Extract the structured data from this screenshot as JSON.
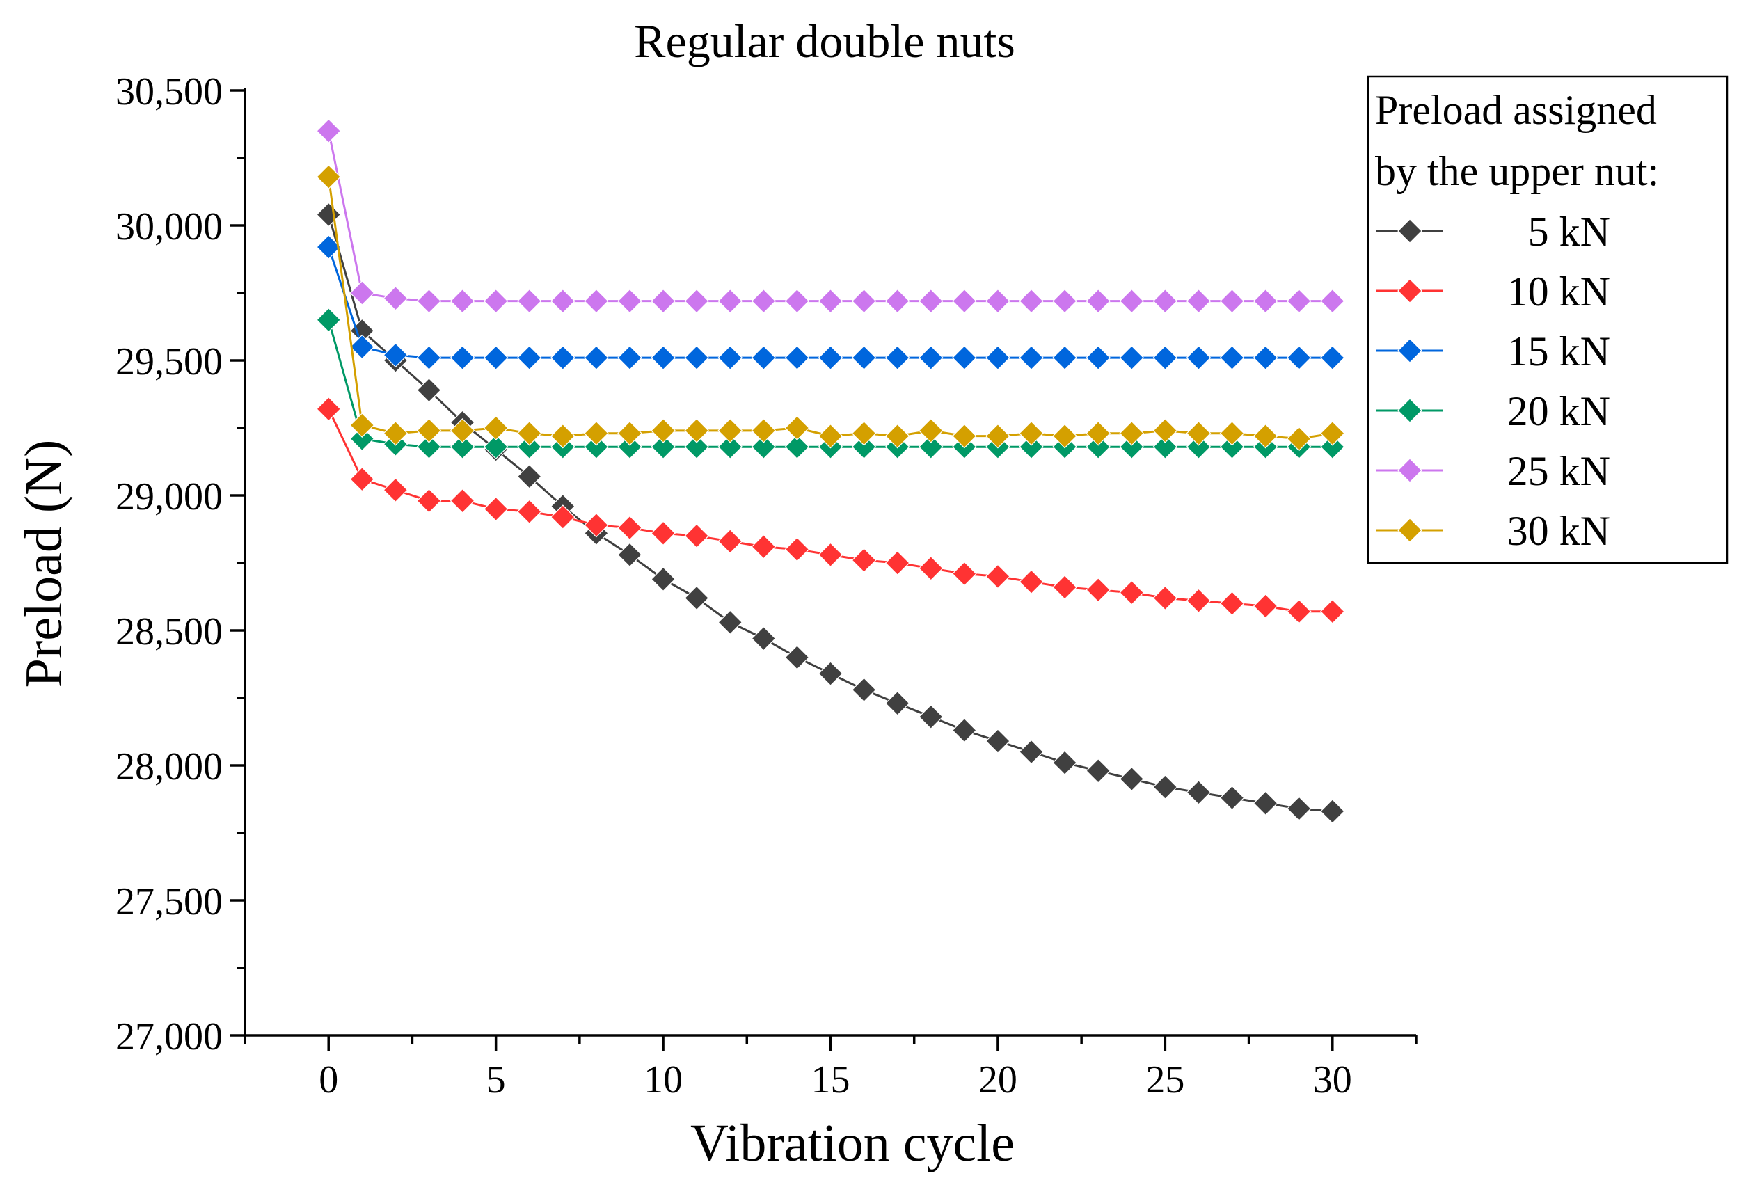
{
  "chart_data": {
    "type": "line",
    "title": "Regular double nuts",
    "xlabel": "Vibration cycle",
    "ylabel": "Preload (N)",
    "xlim": [
      -2.5,
      32.5
    ],
    "ylim": [
      27000,
      30500
    ],
    "x_ticks": [
      0,
      5,
      10,
      15,
      20,
      25,
      30
    ],
    "x_tick_labels": [
      "0",
      "5",
      "10",
      "15",
      "20",
      "25",
      "30"
    ],
    "y_ticks": [
      27000,
      27500,
      28000,
      28500,
      29000,
      29500,
      30000,
      30500
    ],
    "y_tick_labels": [
      "27,000",
      "27,500",
      "28,000",
      "28,500",
      "29,000",
      "29,500",
      "30,000",
      "30,500"
    ],
    "grid": false,
    "marker": "diamond",
    "legend": {
      "position": "top-right",
      "title_lines": [
        "Preload assigned",
        "by the upper nut:"
      ]
    },
    "x": [
      0,
      1,
      2,
      3,
      4,
      5,
      6,
      7,
      8,
      9,
      10,
      11,
      12,
      13,
      14,
      15,
      16,
      17,
      18,
      19,
      20,
      21,
      22,
      23,
      24,
      25,
      26,
      27,
      28,
      29,
      30
    ],
    "series": [
      {
        "name": "5 kN",
        "color": "#404040",
        "values": [
          30040,
          29610,
          29500,
          29390,
          29270,
          29170,
          29070,
          28960,
          28860,
          28780,
          28690,
          28620,
          28530,
          28470,
          28400,
          28340,
          28280,
          28230,
          28180,
          28130,
          28090,
          28050,
          28010,
          27980,
          27950,
          27920,
          27900,
          27880,
          27860,
          27840,
          27830
        ]
      },
      {
        "name": "10 kN",
        "color": "#ff3333",
        "values": [
          29320,
          29060,
          29020,
          28980,
          28980,
          28950,
          28940,
          28920,
          28890,
          28880,
          28860,
          28850,
          28830,
          28810,
          28800,
          28780,
          28760,
          28750,
          28730,
          28710,
          28700,
          28680,
          28660,
          28650,
          28640,
          28620,
          28610,
          28600,
          28590,
          28570,
          28570
        ]
      },
      {
        "name": "15 kN",
        "color": "#0066dd",
        "values": [
          29920,
          29550,
          29520,
          29510,
          29510,
          29510,
          29510,
          29510,
          29510,
          29510,
          29510,
          29510,
          29510,
          29510,
          29510,
          29510,
          29510,
          29510,
          29510,
          29510,
          29510,
          29510,
          29510,
          29510,
          29510,
          29510,
          29510,
          29510,
          29510,
          29510,
          29510
        ]
      },
      {
        "name": "20 kN",
        "color": "#009966",
        "values": [
          29650,
          29210,
          29190,
          29180,
          29180,
          29180,
          29180,
          29180,
          29180,
          29180,
          29180,
          29180,
          29180,
          29180,
          29180,
          29180,
          29180,
          29180,
          29180,
          29180,
          29180,
          29180,
          29180,
          29180,
          29180,
          29180,
          29180,
          29180,
          29180,
          29180,
          29180
        ]
      },
      {
        "name": "25 kN",
        "color": "#cc77ee",
        "values": [
          30350,
          29750,
          29730,
          29720,
          29720,
          29720,
          29720,
          29720,
          29720,
          29720,
          29720,
          29720,
          29720,
          29720,
          29720,
          29720,
          29720,
          29720,
          29720,
          29720,
          29720,
          29720,
          29720,
          29720,
          29720,
          29720,
          29720,
          29720,
          29720,
          29720,
          29720
        ]
      },
      {
        "name": "30 kN",
        "color": "#d4a000",
        "values": [
          30180,
          29260,
          29230,
          29240,
          29240,
          29250,
          29230,
          29220,
          29230,
          29230,
          29240,
          29240,
          29240,
          29240,
          29250,
          29220,
          29230,
          29220,
          29240,
          29220,
          29220,
          29230,
          29220,
          29230,
          29230,
          29240,
          29230,
          29230,
          29220,
          29210,
          29230
        ]
      }
    ]
  }
}
